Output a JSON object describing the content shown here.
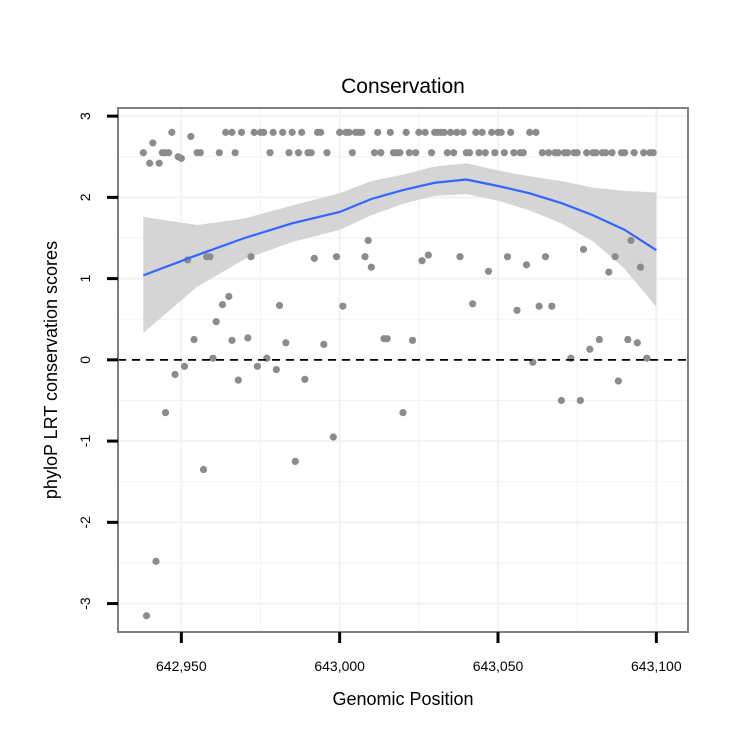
{
  "chart_data": {
    "type": "scatter",
    "title": "Conservation",
    "xlabel": "Genomic Position",
    "ylabel": "phyloP LRT conservation scores",
    "xlim": [
      642930,
      643110
    ],
    "ylim": [
      -3.35,
      3.1
    ],
    "grid": true,
    "xticks": [
      642950,
      643000,
      643050,
      643100
    ],
    "xtick_labels": [
      "642,950",
      "643,000",
      "643,050",
      "643,100"
    ],
    "yticks": [
      -3,
      -2,
      -1,
      0,
      1,
      2,
      3
    ],
    "ytick_labels": [
      "-3",
      "-2",
      "-1",
      "0",
      "1",
      "2",
      "3"
    ],
    "reference_line": {
      "y": 0,
      "style": "dashed"
    },
    "colors": {
      "points": "#8c8c8c",
      "smooth": "#3366ff",
      "band": "#d3d3d3",
      "frame": "#7f7f7f",
      "grid": "#f2f2f2"
    },
    "points": [
      [
        642938,
        2.55
      ],
      [
        642939,
        -3.15
      ],
      [
        642940,
        2.42
      ],
      [
        642941,
        2.67
      ],
      [
        642942,
        -2.48
      ],
      [
        642943,
        2.42
      ],
      [
        642944,
        2.55
      ],
      [
        642945,
        2.55
      ],
      [
        642945,
        -0.65
      ],
      [
        642946,
        2.55
      ],
      [
        642947,
        2.8
      ],
      [
        642948,
        -0.18
      ],
      [
        642949,
        2.5
      ],
      [
        642950,
        2.48
      ],
      [
        642951,
        -0.08
      ],
      [
        642952,
        1.23
      ],
      [
        642953,
        2.75
      ],
      [
        642954,
        0.25
      ],
      [
        642955,
        2.55
      ],
      [
        642956,
        2.55
      ],
      [
        642957,
        -1.35
      ],
      [
        642958,
        1.27
      ],
      [
        642959,
        1.27
      ],
      [
        642960,
        0.02
      ],
      [
        642961,
        0.47
      ],
      [
        642962,
        2.55
      ],
      [
        642963,
        0.68
      ],
      [
        642964,
        2.8
      ],
      [
        642965,
        0.78
      ],
      [
        642966,
        0.24
      ],
      [
        642966,
        2.8
      ],
      [
        642967,
        2.55
      ],
      [
        642968,
        -0.25
      ],
      [
        642969,
        2.8
      ],
      [
        642971,
        0.27
      ],
      [
        642972,
        1.27
      ],
      [
        642973,
        2.8
      ],
      [
        642974,
        -0.08
      ],
      [
        642975,
        2.8
      ],
      [
        642976,
        2.8
      ],
      [
        642977,
        0.02
      ],
      [
        642978,
        2.55
      ],
      [
        642979,
        2.8
      ],
      [
        642980,
        -0.12
      ],
      [
        642981,
        0.67
      ],
      [
        642982,
        2.8
      ],
      [
        642983,
        0.21
      ],
      [
        642984,
        2.55
      ],
      [
        642985,
        2.8
      ],
      [
        642986,
        -1.25
      ],
      [
        642987,
        2.55
      ],
      [
        642988,
        2.8
      ],
      [
        642989,
        -0.24
      ],
      [
        642990,
        2.55
      ],
      [
        642991,
        2.55
      ],
      [
        642992,
        1.25
      ],
      [
        642993,
        2.8
      ],
      [
        642994,
        2.8
      ],
      [
        642995,
        0.19
      ],
      [
        642996,
        2.55
      ],
      [
        642998,
        -0.95
      ],
      [
        642999,
        1.27
      ],
      [
        643000,
        2.8
      ],
      [
        643001,
        0.66
      ],
      [
        643002,
        2.8
      ],
      [
        643003,
        2.8
      ],
      [
        643004,
        2.55
      ],
      [
        643005,
        2.8
      ],
      [
        643006,
        2.8
      ],
      [
        643007,
        2.8
      ],
      [
        643008,
        1.27
      ],
      [
        643009,
        1.47
      ],
      [
        643010,
        1.14
      ],
      [
        643011,
        2.55
      ],
      [
        643012,
        2.8
      ],
      [
        643013,
        2.55
      ],
      [
        643014,
        0.26
      ],
      [
        643015,
        0.26
      ],
      [
        643016,
        2.8
      ],
      [
        643017,
        2.55
      ],
      [
        643018,
        2.55
      ],
      [
        643019,
        2.55
      ],
      [
        643020,
        -0.65
      ],
      [
        643021,
        2.8
      ],
      [
        643022,
        2.55
      ],
      [
        643023,
        0.24
      ],
      [
        643024,
        2.55
      ],
      [
        643025,
        2.8
      ],
      [
        643026,
        1.22
      ],
      [
        643027,
        2.8
      ],
      [
        643028,
        1.29
      ],
      [
        643029,
        2.55
      ],
      [
        643030,
        2.8
      ],
      [
        643031,
        2.8
      ],
      [
        643032,
        2.8
      ],
      [
        643033,
        2.8
      ],
      [
        643034,
        2.55
      ],
      [
        643035,
        2.8
      ],
      [
        643036,
        2.55
      ],
      [
        643037,
        2.8
      ],
      [
        643038,
        1.27
      ],
      [
        643039,
        2.8
      ],
      [
        643040,
        2.55
      ],
      [
        643041,
        2.55
      ],
      [
        643042,
        0.69
      ],
      [
        643043,
        2.8
      ],
      [
        643044,
        2.55
      ],
      [
        643045,
        2.8
      ],
      [
        643046,
        2.55
      ],
      [
        643047,
        1.09
      ],
      [
        643048,
        2.8
      ],
      [
        643049,
        2.55
      ],
      [
        643050,
        2.8
      ],
      [
        643051,
        2.8
      ],
      [
        643052,
        2.55
      ],
      [
        643053,
        1.27
      ],
      [
        643054,
        2.8
      ],
      [
        643055,
        2.55
      ],
      [
        643056,
        0.61
      ],
      [
        643057,
        2.55
      ],
      [
        643058,
        2.55
      ],
      [
        643059,
        1.17
      ],
      [
        643060,
        2.8
      ],
      [
        643061,
        -0.03
      ],
      [
        643062,
        2.8
      ],
      [
        643063,
        0.66
      ],
      [
        643064,
        2.55
      ],
      [
        643065,
        1.27
      ],
      [
        643066,
        2.55
      ],
      [
        643067,
        0.66
      ],
      [
        643068,
        2.55
      ],
      [
        643069,
        2.55
      ],
      [
        643070,
        -0.5
      ],
      [
        643071,
        2.55
      ],
      [
        643072,
        2.55
      ],
      [
        643073,
        0.02
      ],
      [
        643074,
        2.55
      ],
      [
        643075,
        2.55
      ],
      [
        643076,
        -0.5
      ],
      [
        643077,
        1.36
      ],
      [
        643078,
        2.55
      ],
      [
        643079,
        0.13
      ],
      [
        643080,
        2.55
      ],
      [
        643081,
        2.55
      ],
      [
        643082,
        0.25
      ],
      [
        643083,
        2.55
      ],
      [
        643084,
        2.55
      ],
      [
        643085,
        1.08
      ],
      [
        643086,
        2.55
      ],
      [
        643087,
        1.27
      ],
      [
        643088,
        -0.26
      ],
      [
        643089,
        2.55
      ],
      [
        643090,
        2.55
      ],
      [
        643091,
        0.25
      ],
      [
        643092,
        1.47
      ],
      [
        643093,
        2.55
      ],
      [
        643094,
        0.21
      ],
      [
        643095,
        1.14
      ],
      [
        643096,
        2.55
      ],
      [
        643097,
        0.02
      ],
      [
        643098,
        2.55
      ],
      [
        643099,
        2.55
      ]
    ],
    "smooth_fit": {
      "x": [
        642938,
        642955,
        642970,
        642985,
        643000,
        643010,
        643020,
        643030,
        643040,
        643050,
        643060,
        643070,
        643080,
        643090,
        643100
      ],
      "y": [
        1.04,
        1.29,
        1.5,
        1.68,
        1.82,
        1.98,
        2.09,
        2.18,
        2.22,
        2.14,
        2.05,
        1.93,
        1.78,
        1.6,
        1.35
      ],
      "lower": [
        0.33,
        0.9,
        1.24,
        1.45,
        1.6,
        1.78,
        1.92,
        2.02,
        2.04,
        1.96,
        1.84,
        1.68,
        1.46,
        1.12,
        0.65
      ],
      "upper": [
        1.76,
        1.66,
        1.74,
        1.9,
        2.05,
        2.2,
        2.28,
        2.38,
        2.42,
        2.33,
        2.26,
        2.2,
        2.12,
        2.08,
        2.06
      ]
    }
  }
}
